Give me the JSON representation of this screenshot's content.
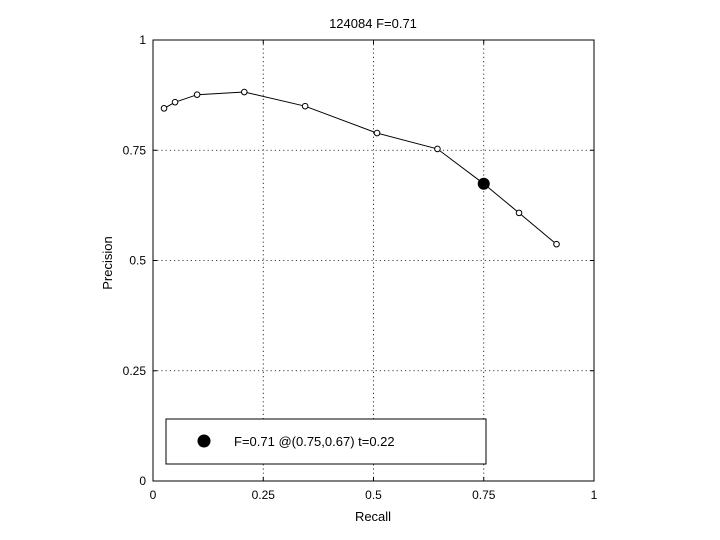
{
  "chart_data": {
    "type": "line",
    "title": "124084 F=0.71",
    "xlabel": "Recall",
    "ylabel": "Precision",
    "xlim": [
      0,
      1
    ],
    "ylim": [
      0,
      1
    ],
    "grid": true,
    "legend_placement": "bottom",
    "x_ticks": [
      "0",
      "0.25",
      "0.5",
      "0.75",
      "1"
    ],
    "y_ticks": [
      "0",
      "0.25",
      "0.5",
      "0.75",
      "1"
    ],
    "series": [
      {
        "x": [
          0.025,
          0.05,
          0.1,
          0.207,
          0.345,
          0.508,
          0.645,
          0.75,
          0.83,
          0.915
        ],
        "y": [
          0.845,
          0.859,
          0.876,
          0.882,
          0.85,
          0.789,
          0.753,
          0.674,
          0.608,
          0.537
        ],
        "color": "#000000"
      }
    ],
    "highlight_point": {
      "x": 0.75,
      "y": 0.674
    },
    "legend_text": "F=0.71 @(0.75,0.67) t=0.22"
  }
}
